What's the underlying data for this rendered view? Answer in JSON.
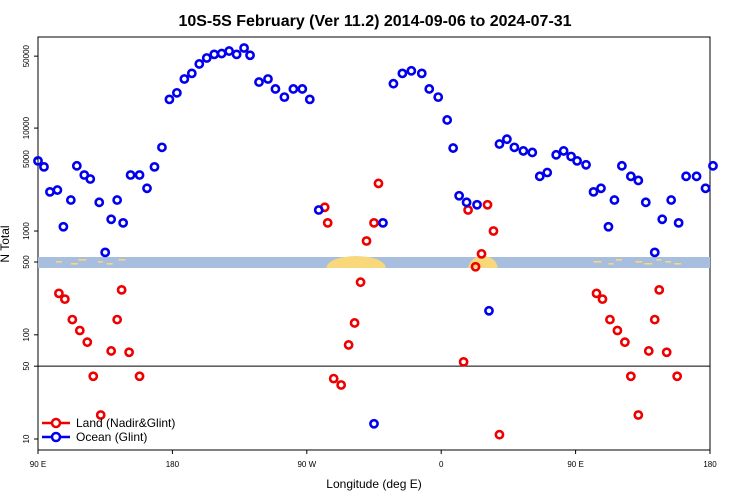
{
  "chart_data": {
    "type": "scatter",
    "title": "10S-5S February (Ver 11.2)   2014-09-06 to 2024-07-31",
    "xlabel": "Longitude (deg E)",
    "ylabel": "N Total",
    "x_tick_labels": [
      "90 E",
      "180",
      "90 W",
      "0",
      "90 E",
      "180"
    ],
    "y_tick_labels": [
      "10",
      "50",
      "100",
      "500",
      "1000",
      "5000",
      "10000",
      "50000"
    ],
    "legend_position": "bottom-left",
    "reference_line_y": 50,
    "colors": {
      "land": "#ee0000",
      "ocean": "#0000ee",
      "map_sea": "#a7bedf",
      "map_land": "#f8d87a"
    },
    "series": [
      {
        "name": "Land (Nadir&Glint)",
        "color": "#ee0000",
        "points": [
          [
            104,
            250
          ],
          [
            108,
            220
          ],
          [
            113,
            140
          ],
          [
            118,
            110
          ],
          [
            123,
            85
          ],
          [
            127,
            40
          ],
          [
            132,
            17
          ],
          [
            139,
            70
          ],
          [
            143,
            140
          ],
          [
            146,
            270
          ],
          [
            151,
            68
          ],
          [
            158,
            40
          ],
          [
            282,
            1700
          ],
          [
            284,
            1200
          ],
          [
            288,
            38
          ],
          [
            293,
            33
          ],
          [
            298,
            80
          ],
          [
            302,
            130
          ],
          [
            306,
            320
          ],
          [
            310,
            800
          ],
          [
            315,
            1200
          ],
          [
            318,
            2900
          ],
          [
            375,
            55
          ],
          [
            378,
            1600
          ],
          [
            383,
            450
          ],
          [
            387,
            600
          ],
          [
            391,
            1800
          ],
          [
            395,
            1000
          ],
          [
            399,
            11
          ],
          [
            464,
            250
          ],
          [
            468,
            220
          ],
          [
            473,
            140
          ],
          [
            478,
            110
          ],
          [
            483,
            85
          ],
          [
            487,
            40
          ],
          [
            492,
            17
          ],
          [
            499,
            70
          ],
          [
            503,
            140
          ],
          [
            506,
            270
          ],
          [
            511,
            68
          ],
          [
            518,
            40
          ]
        ]
      },
      {
        "name": "Ocean (Glint)",
        "color": "#0000ee",
        "points": [
          [
            90,
            4800
          ],
          [
            94,
            4200
          ],
          [
            98,
            2400
          ],
          [
            103,
            2500
          ],
          [
            107,
            1100
          ],
          [
            112,
            2000
          ],
          [
            116,
            4300
          ],
          [
            121,
            3500
          ],
          [
            125,
            3200
          ],
          [
            131,
            1900
          ],
          [
            135,
            620
          ],
          [
            139,
            1300
          ],
          [
            143,
            2000
          ],
          [
            147,
            1200
          ],
          [
            152,
            3500
          ],
          [
            158,
            3500
          ],
          [
            163,
            2600
          ],
          [
            168,
            4200
          ],
          [
            173,
            6500
          ],
          [
            178,
            19000
          ],
          [
            183,
            22000
          ],
          [
            188,
            30000
          ],
          [
            193,
            34000
          ],
          [
            198,
            42000
          ],
          [
            203,
            48000
          ],
          [
            208,
            52000
          ],
          [
            213,
            53000
          ],
          [
            218,
            56000
          ],
          [
            223,
            52000
          ],
          [
            228,
            60000
          ],
          [
            232,
            51000
          ],
          [
            238,
            28000
          ],
          [
            244,
            30000
          ],
          [
            249,
            24000
          ],
          [
            255,
            20000
          ],
          [
            261,
            24000
          ],
          [
            267,
            24000
          ],
          [
            272,
            19000
          ],
          [
            278,
            1600
          ],
          [
            315,
            14
          ],
          [
            321,
            1200
          ],
          [
            328,
            27000
          ],
          [
            334,
            34000
          ],
          [
            340,
            36000
          ],
          [
            347,
            34000
          ],
          [
            352,
            24000
          ],
          [
            358,
            20000
          ],
          [
            364,
            12000
          ],
          [
            368,
            6400
          ],
          [
            372,
            2200
          ],
          [
            377,
            1900
          ],
          [
            384,
            1800
          ],
          [
            392,
            170
          ],
          [
            399,
            7000
          ],
          [
            404,
            7800
          ],
          [
            409,
            6500
          ],
          [
            415,
            6000
          ],
          [
            421,
            5800
          ],
          [
            426,
            3400
          ],
          [
            431,
            3700
          ],
          [
            437,
            5500
          ],
          [
            442,
            6000
          ],
          [
            447,
            5300
          ],
          [
            451,
            4800
          ],
          [
            457,
            4400
          ],
          [
            462,
            2400
          ],
          [
            467,
            2600
          ],
          [
            472,
            1100
          ],
          [
            476,
            2000
          ],
          [
            481,
            4300
          ],
          [
            487,
            3400
          ],
          [
            492,
            3100
          ],
          [
            497,
            1900
          ],
          [
            503,
            620
          ],
          [
            508,
            1300
          ],
          [
            514,
            2000
          ],
          [
            519,
            1200
          ],
          [
            524,
            3400
          ],
          [
            531,
            3400
          ],
          [
            537,
            2600
          ],
          [
            542,
            4300
          ]
        ]
      }
    ]
  }
}
